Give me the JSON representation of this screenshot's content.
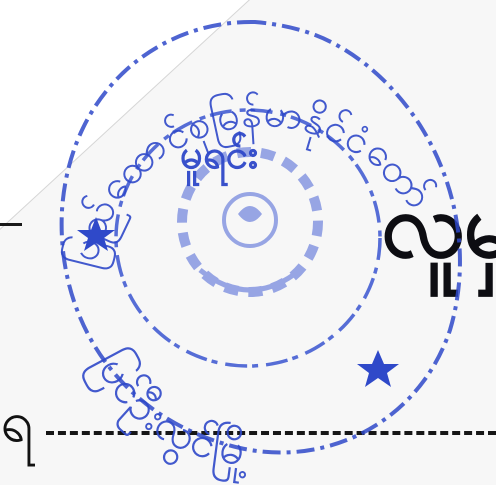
{
  "document": {
    "heading_fragment": "လူမှ",
    "left_fragment": "ရ",
    "dashed_rule": true
  },
  "stamp": {
    "color": "#2f49c9",
    "top_arc_text": "ပြည်ထောင်စုမြန်မာနိုင်ငံတော်",
    "inner_label": "မူရင်း",
    "bottom_text": "ပြင်ဦးလွင်မြို့",
    "emblem": "seal-emblem-icon",
    "stars": [
      "star-icon",
      "star-icon"
    ]
  }
}
